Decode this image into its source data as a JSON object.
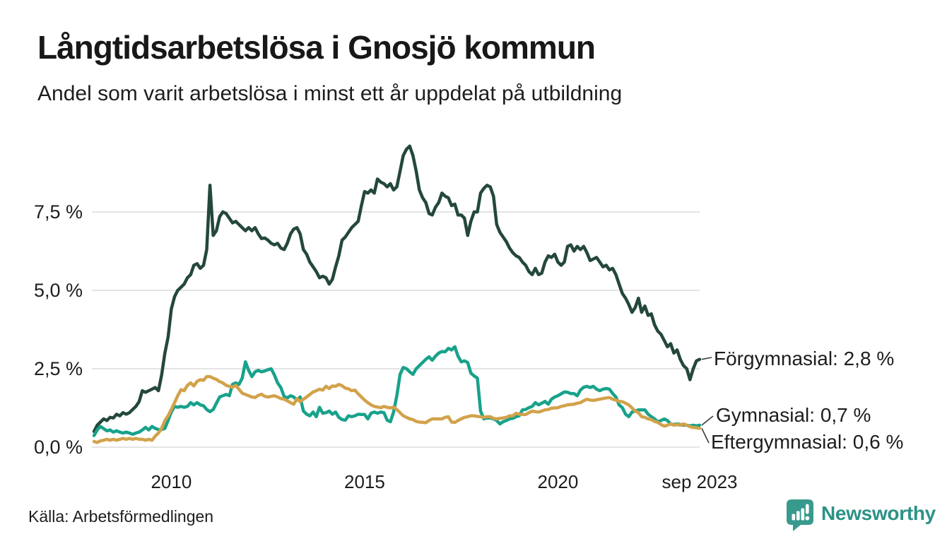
{
  "chart_data": {
    "type": "line",
    "title": "Långtidsarbetslösa i Gnosjö kommun",
    "subtitle": "Andel som varit arbetslösa i minst ett år uppdelat på utbildning",
    "unit": "%",
    "grid": true,
    "legend_position": "end-labels-right",
    "x_axis": {
      "start": "2008-01",
      "end": "2023-09",
      "frequency": "monthly",
      "ticks": [
        {
          "index": 24,
          "label": "2010"
        },
        {
          "index": 84,
          "label": "2015"
        },
        {
          "index": 144,
          "label": "2020"
        },
        {
          "index": 188,
          "label": "sep 2023"
        }
      ]
    },
    "y_axis": {
      "min": 0,
      "max": 9.8,
      "ticks": [
        {
          "value": 0,
          "label": "0,0 %"
        },
        {
          "value": 2.5,
          "label": "2,5 %"
        },
        {
          "value": 5,
          "label": "5,0 %"
        },
        {
          "value": 7.5,
          "label": "7,5 %"
        }
      ]
    },
    "series": [
      {
        "name": "Förgymnasial",
        "color": "#24483b",
        "end_label": "Förgymnasial: 2,8 %",
        "values": [
          0.5,
          0.7,
          0.8,
          0.9,
          0.85,
          0.95,
          0.93,
          1.05,
          1.0,
          1.1,
          1.05,
          1.1,
          1.2,
          1.3,
          1.45,
          1.8,
          1.75,
          1.8,
          1.85,
          1.9,
          1.8,
          2.3,
          3.0,
          3.5,
          4.4,
          4.8,
          5.0,
          5.1,
          5.2,
          5.4,
          5.5,
          5.8,
          5.85,
          5.7,
          5.8,
          6.3,
          8.35,
          6.75,
          6.9,
          7.35,
          7.5,
          7.45,
          7.3,
          7.15,
          7.2,
          7.1,
          7.0,
          6.9,
          7.0,
          6.9,
          7.0,
          6.8,
          6.65,
          6.67,
          6.6,
          6.5,
          6.45,
          6.5,
          6.35,
          6.3,
          6.5,
          6.8,
          6.95,
          7.0,
          6.8,
          6.3,
          6.15,
          5.9,
          5.75,
          5.6,
          5.4,
          5.45,
          5.4,
          5.2,
          5.35,
          5.75,
          6.1,
          6.6,
          6.7,
          6.85,
          7.0,
          7.1,
          7.2,
          7.7,
          8.15,
          8.1,
          8.2,
          8.1,
          8.55,
          8.45,
          8.4,
          8.3,
          8.4,
          8.2,
          8.3,
          8.8,
          9.3,
          9.5,
          9.6,
          9.3,
          8.8,
          8.2,
          7.95,
          7.8,
          7.45,
          7.4,
          7.65,
          7.8,
          8.1,
          8.0,
          7.95,
          7.7,
          7.75,
          7.4,
          7.4,
          7.3,
          6.75,
          7.2,
          7.5,
          7.5,
          8.1,
          8.25,
          8.35,
          8.3,
          8.0,
          7.1,
          6.85,
          6.7,
          6.55,
          6.35,
          6.2,
          6.1,
          6.05,
          5.9,
          5.8,
          5.6,
          5.5,
          5.7,
          5.5,
          5.55,
          5.9,
          6.1,
          6.05,
          6.15,
          5.9,
          5.8,
          5.9,
          6.4,
          6.45,
          6.25,
          6.4,
          6.3,
          6.4,
          6.2,
          5.95,
          6.0,
          6.05,
          5.9,
          5.75,
          5.8,
          5.65,
          5.7,
          5.5,
          5.2,
          4.9,
          4.75,
          4.55,
          4.3,
          4.45,
          4.75,
          4.3,
          4.5,
          4.2,
          4.25,
          3.9,
          3.7,
          3.6,
          3.4,
          3.2,
          3.3,
          3.0,
          3.1,
          2.8,
          2.6,
          2.5,
          2.15,
          2.5,
          2.75,
          2.8
        ]
      },
      {
        "name": "Gymnasial",
        "color": "#18a28b",
        "end_label": "Gymnasial: 0,7 %",
        "values": [
          0.37,
          0.55,
          0.66,
          0.59,
          0.52,
          0.55,
          0.48,
          0.52,
          0.48,
          0.45,
          0.48,
          0.45,
          0.41,
          0.45,
          0.48,
          0.55,
          0.63,
          0.55,
          0.66,
          0.6,
          0.56,
          0.56,
          0.6,
          0.85,
          1.12,
          1.3,
          1.27,
          1.3,
          1.27,
          1.3,
          1.42,
          1.35,
          1.42,
          1.35,
          1.32,
          1.2,
          1.13,
          1.2,
          1.4,
          1.6,
          1.64,
          1.68,
          1.64,
          2.0,
          2.05,
          2.0,
          2.2,
          2.72,
          2.45,
          2.25,
          2.4,
          2.45,
          2.4,
          2.43,
          2.47,
          2.5,
          2.3,
          2.05,
          1.9,
          1.62,
          1.57,
          1.64,
          1.6,
          1.5,
          1.6,
          1.15,
          1.05,
          1.0,
          1.12,
          0.97,
          1.27,
          1.08,
          1.1,
          1.15,
          1.05,
          1.12,
          0.95,
          0.88,
          0.86,
          1.0,
          0.97,
          1.0,
          1.05,
          1.04,
          1.04,
          0.9,
          1.08,
          1.12,
          1.08,
          1.12,
          1.1,
          0.86,
          0.81,
          1.12,
          1.64,
          2.32,
          2.54,
          2.5,
          2.4,
          2.32,
          2.5,
          2.6,
          2.7,
          2.8,
          2.88,
          2.77,
          2.9,
          3.0,
          3.05,
          3.04,
          3.15,
          3.1,
          3.2,
          2.9,
          2.72,
          2.75,
          2.7,
          2.36,
          2.27,
          2.2,
          1.15,
          0.9,
          0.93,
          0.93,
          0.9,
          0.85,
          0.74,
          0.81,
          0.85,
          0.9,
          0.92,
          0.97,
          1.0,
          1.19,
          1.2,
          1.26,
          1.3,
          1.42,
          1.35,
          1.4,
          1.46,
          1.37,
          1.53,
          1.6,
          1.64,
          1.7,
          1.76,
          1.75,
          1.71,
          1.71,
          1.64,
          1.82,
          1.91,
          1.94,
          1.9,
          1.94,
          1.85,
          1.8,
          1.85,
          1.87,
          1.85,
          1.71,
          1.6,
          1.35,
          1.26,
          1.05,
          0.97,
          1.12,
          1.15,
          1.19,
          1.19,
          1.19,
          1.05,
          0.97,
          0.9,
          0.81,
          0.85,
          0.9,
          0.85,
          0.74,
          0.72,
          0.74,
          0.72,
          0.7,
          0.7,
          0.68,
          0.7,
          0.68,
          0.7
        ]
      },
      {
        "name": "Eftergymnasial",
        "color": "#d2a24b",
        "end_label": "Eftergymnasial: 0,6 %",
        "values": [
          0.18,
          0.15,
          0.2,
          0.22,
          0.25,
          0.22,
          0.25,
          0.22,
          0.25,
          0.28,
          0.25,
          0.28,
          0.25,
          0.28,
          0.25,
          0.25,
          0.22,
          0.25,
          0.22,
          0.35,
          0.45,
          0.6,
          0.85,
          1.0,
          1.2,
          1.42,
          1.64,
          1.83,
          1.8,
          1.97,
          2.05,
          1.95,
          2.1,
          2.15,
          2.13,
          2.25,
          2.25,
          2.2,
          2.16,
          2.09,
          2.05,
          1.97,
          1.94,
          1.91,
          1.97,
          1.85,
          1.72,
          1.68,
          1.64,
          1.6,
          1.58,
          1.65,
          1.69,
          1.62,
          1.6,
          1.62,
          1.64,
          1.6,
          1.55,
          1.53,
          1.48,
          1.42,
          1.37,
          1.55,
          1.45,
          1.53,
          1.6,
          1.68,
          1.76,
          1.8,
          1.85,
          1.82,
          1.94,
          1.87,
          1.95,
          1.94,
          2.0,
          1.96,
          1.88,
          1.86,
          1.8,
          1.82,
          1.7,
          1.6,
          1.5,
          1.42,
          1.35,
          1.3,
          1.28,
          1.26,
          1.3,
          1.27,
          1.25,
          1.28,
          1.2,
          1.1,
          1.0,
          0.95,
          0.9,
          0.88,
          0.82,
          0.8,
          0.79,
          0.78,
          0.85,
          0.9,
          0.9,
          0.9,
          0.9,
          0.95,
          0.97,
          0.8,
          0.79,
          0.85,
          0.9,
          0.95,
          0.97,
          1.0,
          1.0,
          0.98,
          0.97,
          0.95,
          0.97,
          0.97,
          0.92,
          0.9,
          0.92,
          0.93,
          0.95,
          1.0,
          1.0,
          1.08,
          1.05,
          1.04,
          1.04,
          1.1,
          1.15,
          1.13,
          1.12,
          1.15,
          1.19,
          1.2,
          1.24,
          1.25,
          1.26,
          1.3,
          1.32,
          1.35,
          1.36,
          1.37,
          1.4,
          1.42,
          1.48,
          1.53,
          1.5,
          1.49,
          1.51,
          1.53,
          1.55,
          1.57,
          1.58,
          1.53,
          1.5,
          1.46,
          1.45,
          1.4,
          1.35,
          1.25,
          1.15,
          1.1,
          0.97,
          0.95,
          0.9,
          0.88,
          0.82,
          0.79,
          0.72,
          0.67,
          0.7,
          0.74,
          0.7,
          0.72,
          0.7,
          0.74,
          0.7,
          0.65,
          0.63,
          0.62,
          0.6
        ]
      }
    ]
  },
  "footer": {
    "source": "Källa: Arbetsförmedlingen",
    "brand": "Newsworthy"
  },
  "colors": {
    "grid": "#e4e4e4",
    "text": "#1d1d1d",
    "connector": "#3c3c3c",
    "brand_teal": "#2b9286",
    "brand_icon_teal": "#389a8d"
  }
}
